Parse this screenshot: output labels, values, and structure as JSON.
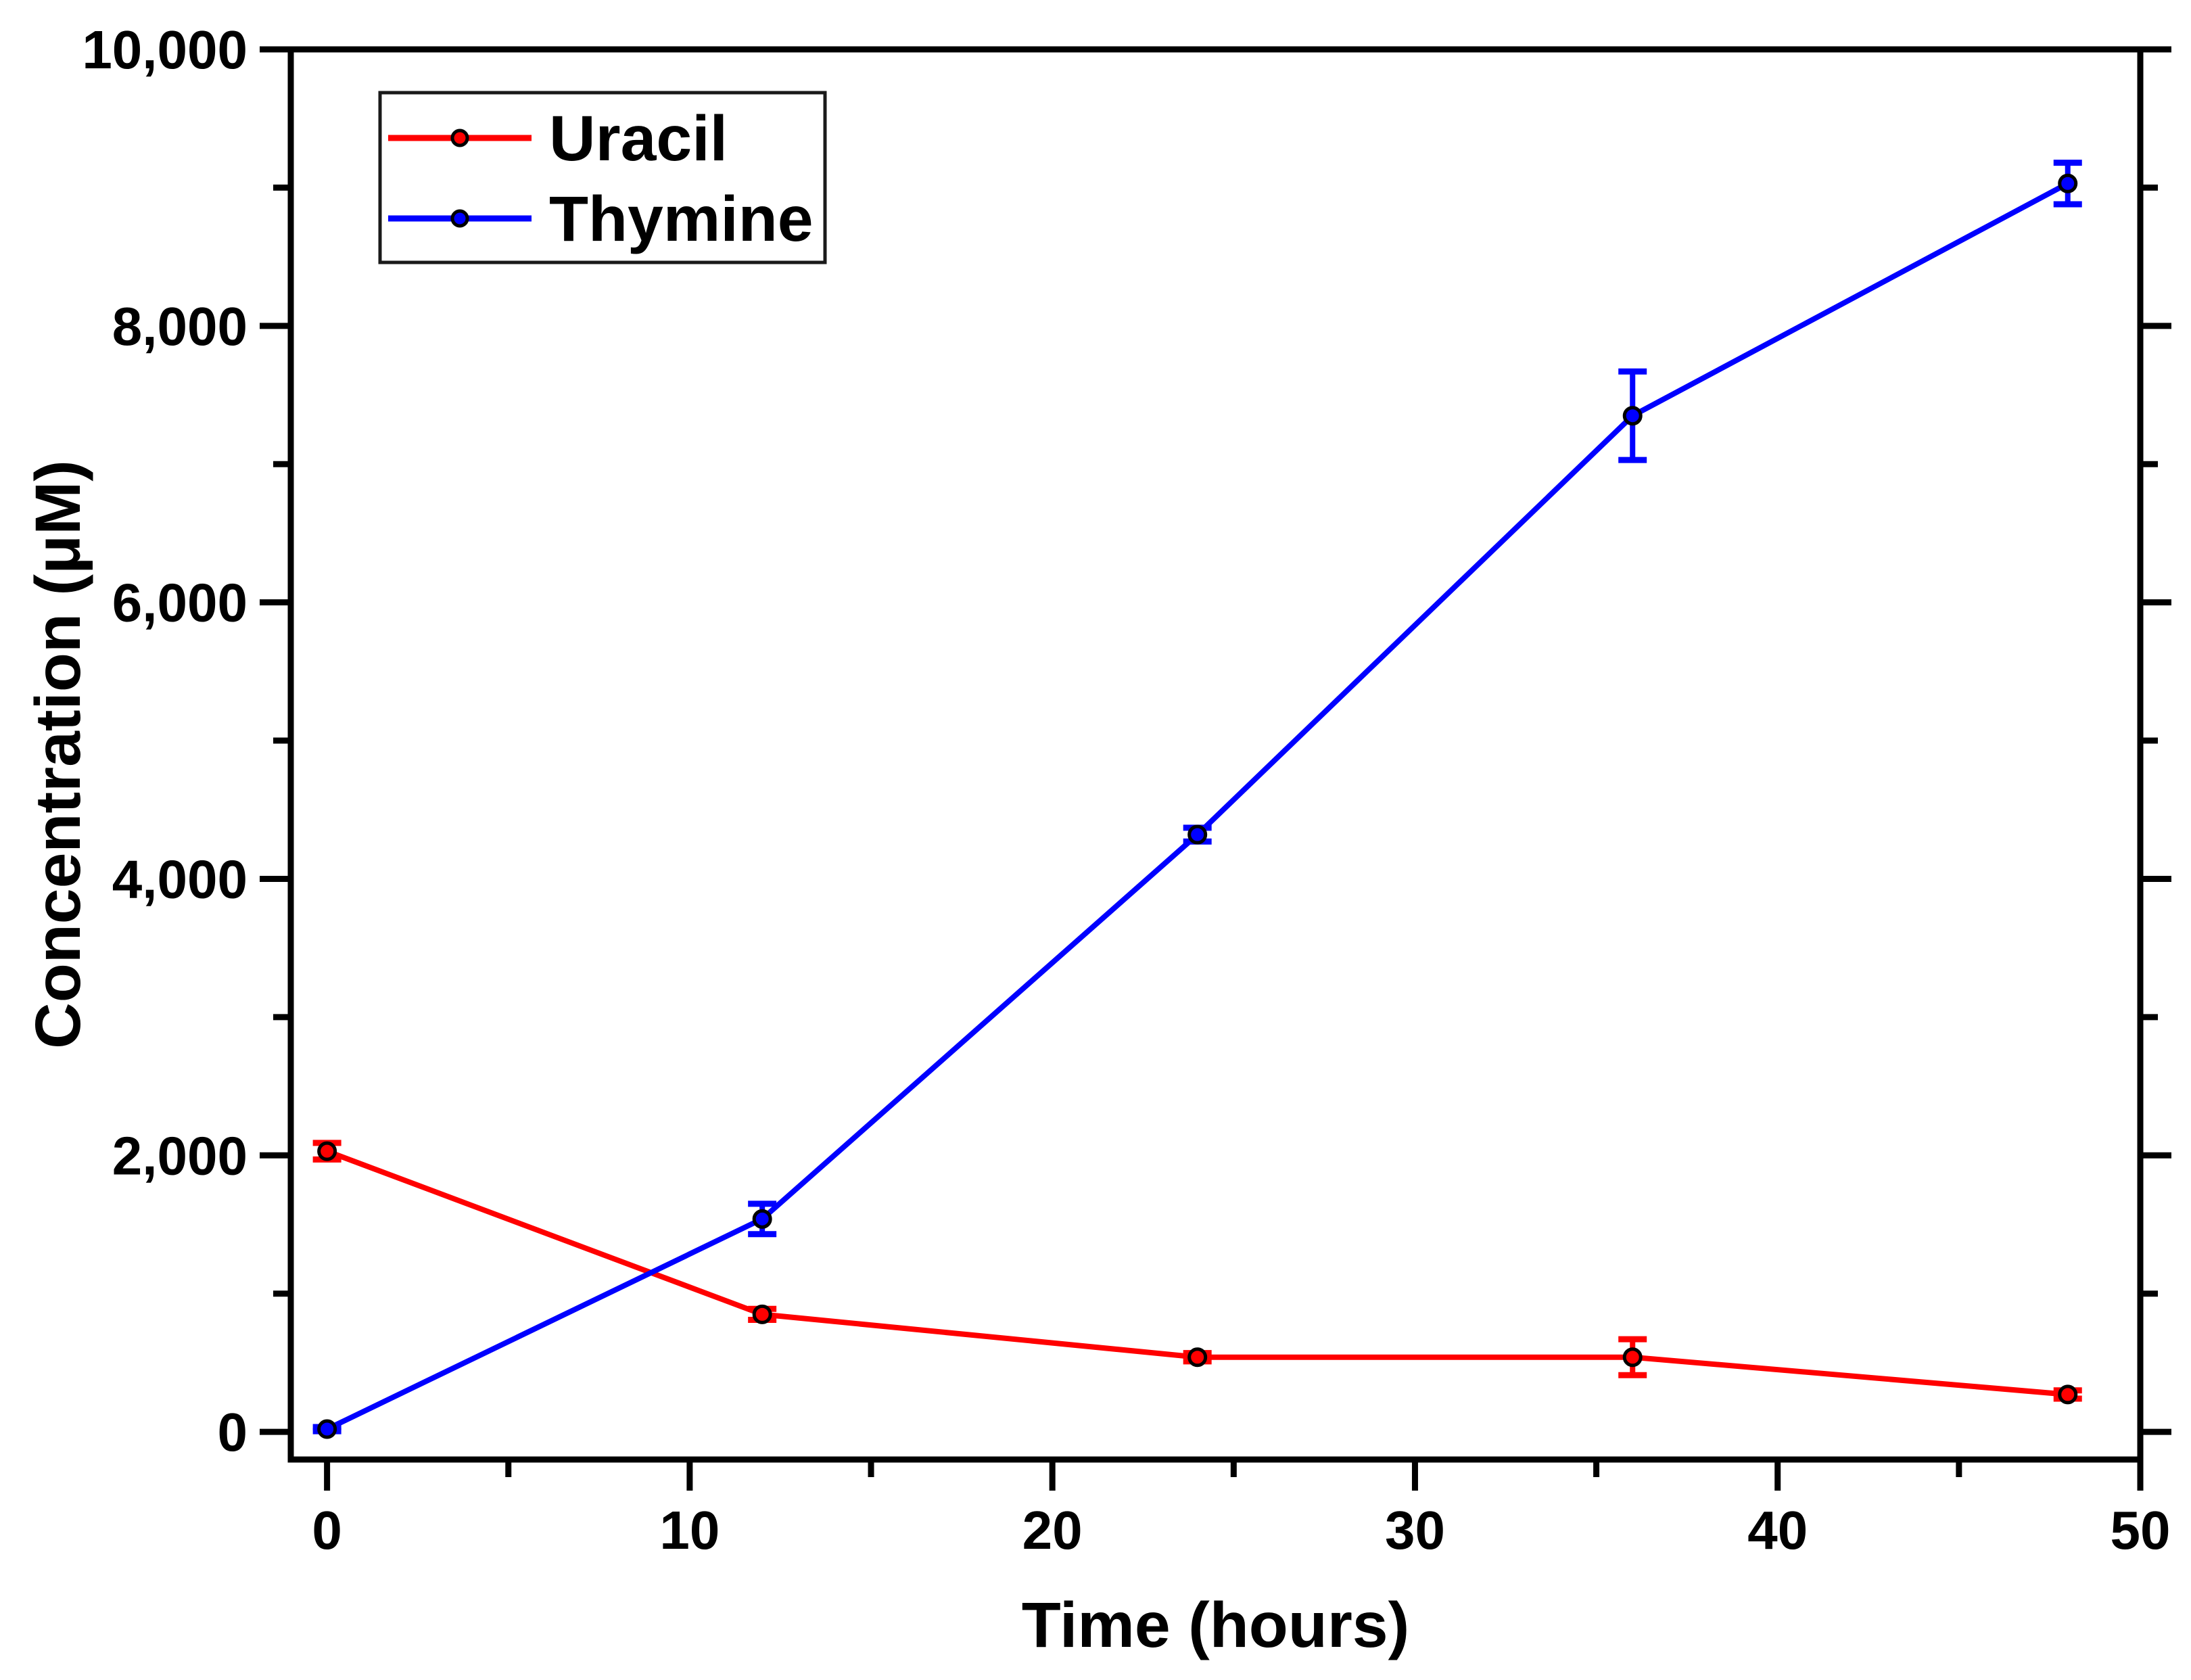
{
  "figure": {
    "background": "#ffffff",
    "frame_color": "#000000",
    "legend_border_color": "#1a1a1a"
  },
  "chart_data": {
    "type": "line",
    "title": "",
    "xlabel": "Time (hours)",
    "ylabel": "Concentration (μM)",
    "xlim": [
      -1,
      50
    ],
    "ylim": [
      -200,
      10000
    ],
    "x_major_ticks": [
      0,
      10,
      20,
      30,
      40,
      50
    ],
    "x_tick_labels": [
      "0",
      "10",
      "20",
      "30",
      "40",
      "50"
    ],
    "x_minor_ticks": [
      5,
      15,
      25,
      35,
      45
    ],
    "y_major_ticks": [
      0,
      2000,
      4000,
      6000,
      8000,
      10000
    ],
    "y_tick_labels": [
      "0",
      "2,000",
      "4,000",
      "6,000",
      "8,000",
      "10,000"
    ],
    "y_minor_ticks": [
      1000,
      3000,
      5000,
      7000,
      9000
    ],
    "x": [
      0,
      12,
      24,
      36,
      48
    ],
    "series": [
      {
        "name": "Uracil",
        "color": "#ff0000",
        "marker": "circle",
        "values": [
          2030,
          850,
          540,
          540,
          270
        ],
        "yerr": [
          60,
          40,
          30,
          130,
          30
        ]
      },
      {
        "name": "Thymine",
        "color": "#0000ff",
        "marker": "circle",
        "values": [
          20,
          1540,
          4320,
          7350,
          9030
        ],
        "yerr": [
          15,
          110,
          50,
          320,
          150
        ]
      }
    ],
    "error_bars": true,
    "grid": false,
    "legend_position": "top-left"
  }
}
